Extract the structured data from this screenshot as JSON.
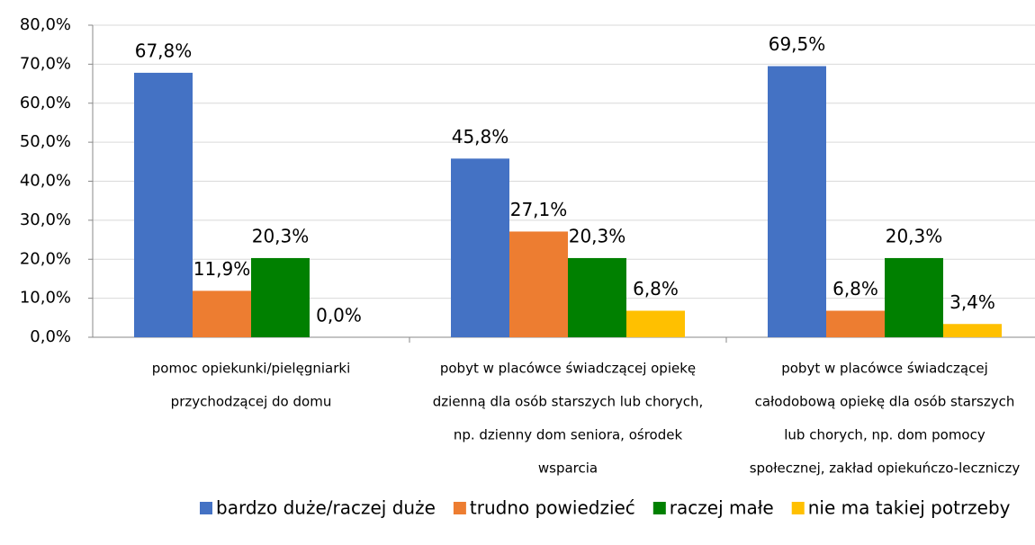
{
  "chart_data": {
    "type": "bar",
    "categories": [
      [
        "pomoc opiekunki/pielęgniarki",
        "przychodzącej do domu"
      ],
      [
        "pobyt w placówce świadczącej opiekę",
        "dzienną dla osób starszych lub chorych,",
        "np. dzienny dom seniora, ośrodek",
        "wsparcia"
      ],
      [
        "pobyt w placówce świadczącej",
        "całodobową opiekę dla osób starszych",
        "lub chorych, np. dom pomocy",
        "społecznej, zakład opiekuńczo-leczniczy"
      ]
    ],
    "series": [
      {
        "name": "bardzo duże/raczej duże",
        "color": "#4472c4",
        "values": [
          67.8,
          45.8,
          69.5
        ],
        "value_labels": [
          "67,8%",
          "45,8%",
          "69,5%"
        ]
      },
      {
        "name": "trudno powiedzieć",
        "color": "#ed7d31",
        "values": [
          11.9,
          27.1,
          6.8
        ],
        "value_labels": [
          "11,9%",
          "27,1%",
          "6,8%"
        ]
      },
      {
        "name": "raczej małe",
        "color": "#008000",
        "values": [
          20.3,
          20.3,
          20.3
        ],
        "value_labels": [
          "20,3%",
          "20,3%",
          "20,3%"
        ]
      },
      {
        "name": "nie ma takiej potrzeby",
        "color": "#ffc000",
        "values": [
          0.0,
          6.8,
          3.4
        ],
        "value_labels": [
          "0,0%",
          "6,8%",
          "3,4%"
        ]
      }
    ],
    "ylim": [
      0,
      80
    ],
    "yticks": [
      {
        "value": 0,
        "label": "0,0%"
      },
      {
        "value": 10,
        "label": "10,0%"
      },
      {
        "value": 20,
        "label": "20,0%"
      },
      {
        "value": 30,
        "label": "30,0%"
      },
      {
        "value": 40,
        "label": "40,0%"
      },
      {
        "value": 50,
        "label": "50,0%"
      },
      {
        "value": 60,
        "label": "60,0%"
      },
      {
        "value": 70,
        "label": "70,0%"
      },
      {
        "value": 80,
        "label": "80,0%"
      }
    ],
    "grid": true,
    "legend": "bottom"
  }
}
